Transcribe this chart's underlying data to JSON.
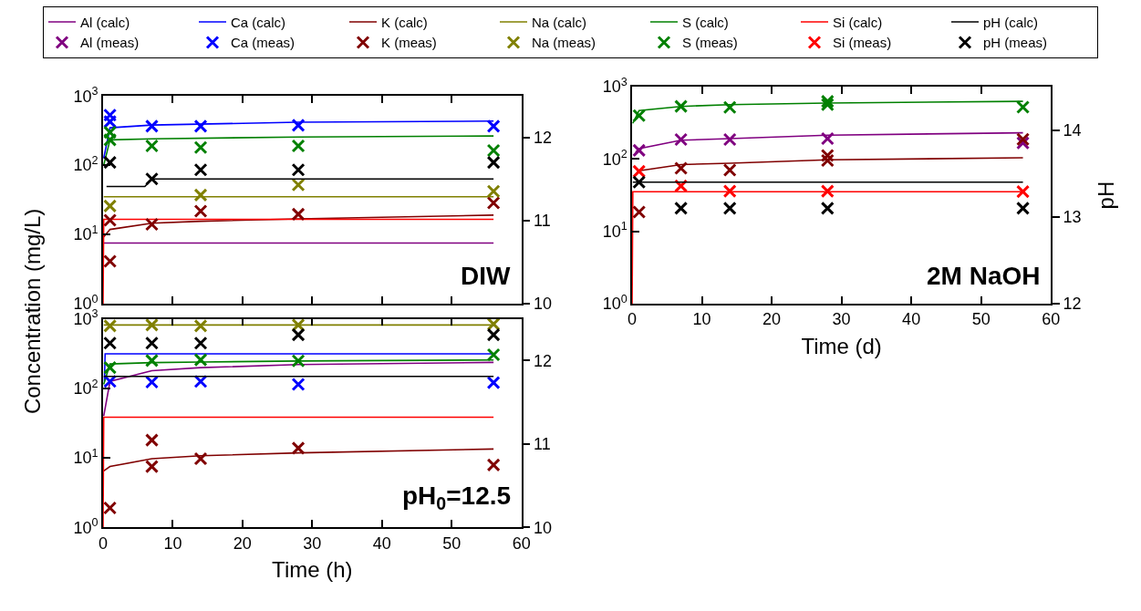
{
  "chart_data": [
    {
      "type": "line",
      "ylabel": "Concentration (mg/L)",
      "xlim": [
        0,
        60
      ],
      "xticks": [
        0,
        10,
        20,
        30,
        40,
        50,
        60
      ],
      "ylim": [
        1,
        1000
      ],
      "yticks": [
        {
          "value": 1,
          "label": "10$^{0}$"
        },
        {
          "value": 10,
          "label": "10$^{1}$"
        },
        {
          "value": 100,
          "label": "10$^{2}$"
        },
        {
          "value": 1000,
          "label": "10$^{3}$"
        }
      ],
      "y2lim": [
        10,
        12.5
      ],
      "y2ticks": [
        10,
        11,
        12
      ],
      "log": true,
      "legend": "top",
      "tick_labels": "y",
      "annotations": [
        "DIW"
      ],
      "series": [
        {
          "name": "Al (calc)",
          "color": "#800080",
          "x": [
            0.1,
            56
          ],
          "values": [
            7.5,
            7.5
          ]
        },
        {
          "name": "Ca (calc)",
          "color": "#0000ff",
          "x": [
            0.1,
            1,
            7,
            28,
            56
          ],
          "values": [
            126,
            347,
            380,
            417,
            433
          ]
        },
        {
          "name": "K (calc)",
          "color": "#800000",
          "x": [
            0.1,
            1,
            7,
            14,
            28,
            56
          ],
          "values": [
            9.2,
            11.8,
            14.5,
            15.5,
            16.8,
            19
          ]
        },
        {
          "name": "Na (calc)",
          "color": "#808000",
          "x": [
            0.1,
            56
          ],
          "values": [
            35,
            35
          ]
        },
        {
          "name": "S (calc)",
          "color": "#008000",
          "x": [
            0.1,
            1,
            7,
            28,
            56
          ],
          "values": [
            100,
            232,
            240,
            255,
            264
          ]
        },
        {
          "name": "Si (calc)",
          "color": "#ff0000",
          "x": [
            0,
            0.1,
            56
          ],
          "values": [
            1,
            16.5,
            16.5
          ]
        },
        {
          "name": "pH (calc)",
          "color": "#000000",
          "axis": "y2",
          "x": [
            0.5,
            6,
            7,
            56
          ],
          "values": [
            11.41,
            11.41,
            11.5,
            11.5
          ]
        },
        {
          "name": "Ca (meas)",
          "type": "scatter",
          "marker": "cross",
          "color": "#0000ff",
          "x": [
            1,
            1,
            7,
            14,
            28,
            56
          ],
          "values": [
            527,
            425,
            365,
            365,
            377,
            365
          ]
        },
        {
          "name": "K (meas)",
          "type": "scatter",
          "marker": "cross",
          "color": "#800000",
          "x": [
            1,
            1,
            7,
            14,
            28,
            56
          ],
          "values": [
            16,
            4.1,
            14,
            21.7,
            19.6,
            28.5
          ]
        },
        {
          "name": "Na (meas)",
          "type": "scatter",
          "marker": "cross",
          "color": "#808000",
          "x": [
            1,
            14,
            28,
            56
          ],
          "values": [
            25.7,
            37,
            52,
            42
          ]
        },
        {
          "name": "S (meas)",
          "type": "scatter",
          "marker": "cross",
          "color": "#008000",
          "x": [
            1,
            1,
            7,
            14,
            28,
            56
          ],
          "values": [
            298,
            232,
            190,
            180,
            190,
            163
          ]
        },
        {
          "name": "pH (meas)",
          "type": "scatter",
          "marker": "cross",
          "color": "#000000",
          "axis": "y2",
          "x": [
            1,
            7,
            14,
            28,
            56
          ],
          "values": [
            11.7,
            11.5,
            11.61,
            11.61,
            11.7
          ]
        }
      ]
    },
    {
      "type": "line",
      "xlabel": "Time (d)",
      "y2label": "pH",
      "xlim": [
        0,
        60
      ],
      "xticks": [
        0,
        10,
        20,
        30,
        40,
        50,
        60
      ],
      "ylim": [
        1,
        1000
      ],
      "yticks": [
        {
          "value": 1,
          "label": "10$^{0}$"
        },
        {
          "value": 10,
          "label": "10$^{1}$"
        },
        {
          "value": 100,
          "label": "10$^{2}$"
        },
        {
          "value": 1000,
          "label": "10$^{3}$"
        }
      ],
      "y2lim": [
        12,
        14.5
      ],
      "y2ticks": [
        12,
        13,
        14
      ],
      "log": true,
      "legend": "top",
      "annotations": [
        "2M NaOH"
      ],
      "series": [
        {
          "color": "#800080",
          "x": [
            0.5,
            1,
            7,
            14,
            28,
            56
          ],
          "values": [
            125,
            139,
            182,
            192,
            214,
            231
          ]
        },
        {
          "color": "#800000",
          "x": [
            1,
            7,
            14,
            28,
            56
          ],
          "values": [
            69,
            84,
            87.5,
            97.5,
            104
          ]
        },
        {
          "color": "#008000",
          "x": [
            0.1,
            1,
            7,
            14,
            28,
            56
          ],
          "values": [
            312,
            470,
            535,
            565,
            596,
            629
          ]
        },
        {
          "color": "#ff0000",
          "x": [
            0,
            0.1,
            56
          ],
          "values": [
            1,
            35.4,
            35.4
          ]
        },
        {
          "color": "#000000",
          "axis": "y2",
          "x": [
            0.1,
            56
          ],
          "values": [
            13.4,
            13.4
          ]
        },
        {
          "name": "Al (meas)",
          "type": "scatter",
          "marker": "cross",
          "color": "#800080",
          "x": [
            1,
            7,
            14,
            28,
            56
          ],
          "values": [
            132,
            186,
            186,
            192,
            167
          ]
        },
        {
          "type": "scatter",
          "marker": "cross",
          "color": "#800000",
          "x": [
            1,
            7,
            14,
            28,
            28,
            56
          ],
          "values": [
            18.5,
            74.5,
            70.5,
            112,
            95.5,
            188
          ]
        },
        {
          "type": "scatter",
          "marker": "cross",
          "color": "#008000",
          "x": [
            1,
            7,
            14,
            28,
            28,
            56
          ],
          "values": [
            400,
            535,
            518,
            629,
            565,
            523
          ]
        },
        {
          "name": "Si (meas)",
          "type": "scatter",
          "marker": "cross",
          "color": "#ff0000",
          "x": [
            1,
            7,
            14,
            28,
            56
          ],
          "values": [
            67.6,
            42.5,
            36,
            36,
            35.4
          ]
        },
        {
          "type": "scatter",
          "marker": "cross",
          "color": "#000000",
          "axis": "y2",
          "x": [
            1,
            7,
            14,
            28,
            56
          ],
          "values": [
            13.4,
            13.1,
            13.1,
            13.1,
            13.1
          ]
        }
      ]
    },
    {
      "type": "line",
      "xlabel": "Time (h)",
      "xlim": [
        0,
        60
      ],
      "xticks": [
        0,
        10,
        20,
        30,
        40,
        50,
        60
      ],
      "ylim": [
        1,
        1000
      ],
      "yticks": [
        {
          "value": 1,
          "label": "10$^{0}$"
        },
        {
          "value": 10,
          "label": "10$^{1}$"
        },
        {
          "value": 100,
          "label": "10$^{2}$"
        },
        {
          "value": 1000,
          "label": "10$^{3}$"
        }
      ],
      "y2lim": [
        10,
        12.5
      ],
      "y2ticks": [
        10,
        11,
        12
      ],
      "log": true,
      "annotations": [
        "pH$_{0}$=12.5"
      ],
      "series": [
        {
          "color": "#800080",
          "x": [
            0.1,
            1,
            7,
            14,
            28,
            56
          ],
          "values": [
            40,
            126,
            180,
            199,
            220,
            237
          ]
        },
        {
          "color": "#0000ff",
          "x": [
            0.2,
            0.3,
            56
          ],
          "values": [
            126,
            314,
            314
          ]
        },
        {
          "color": "#800000",
          "x": [
            0.1,
            1,
            7,
            14,
            28,
            56
          ],
          "values": [
            6.5,
            7.5,
            9.7,
            10.7,
            11.8,
            13.4
          ]
        },
        {
          "color": "#808000",
          "x": [
            0.1,
            56
          ],
          "values": [
            818,
            818
          ]
        },
        {
          "color": "#008000",
          "x": [
            0.1,
            1,
            7,
            14,
            28,
            56
          ],
          "values": [
            114,
            225,
            235,
            240,
            248,
            257
          ]
        },
        {
          "color": "#ff0000",
          "x": [
            0,
            0.1,
            56
          ],
          "values": [
            1,
            38.5,
            38.5
          ]
        },
        {
          "color": "#000000",
          "axis": "y2",
          "x": [
            0.1,
            56
          ],
          "values": [
            11.81,
            11.81
          ]
        },
        {
          "type": "scatter",
          "marker": "cross",
          "color": "#0000ff",
          "x": [
            1,
            7,
            14,
            28,
            56
          ],
          "values": [
            126,
            123,
            126,
            114,
            121
          ]
        },
        {
          "type": "scatter",
          "marker": "cross",
          "color": "#800000",
          "x": [
            1,
            7,
            7,
            14,
            28,
            56
          ],
          "values": [
            1.9,
            18,
            7.5,
            9.7,
            13.8,
            7.9
          ]
        },
        {
          "type": "scatter",
          "marker": "cross",
          "color": "#808000",
          "x": [
            1,
            7,
            14,
            28,
            56
          ],
          "values": [
            794,
            818,
            794,
            818,
            843
          ]
        },
        {
          "type": "scatter",
          "marker": "cross",
          "color": "#008000",
          "x": [
            1,
            7,
            14,
            28,
            56
          ],
          "values": [
            199,
            252,
            257,
            249,
            305
          ]
        },
        {
          "type": "scatter",
          "marker": "cross",
          "color": "#000000",
          "axis": "y2",
          "x": [
            1,
            7,
            14,
            28,
            56
          ],
          "values": [
            12.21,
            12.21,
            12.21,
            12.31,
            12.31
          ]
        }
      ]
    }
  ]
}
